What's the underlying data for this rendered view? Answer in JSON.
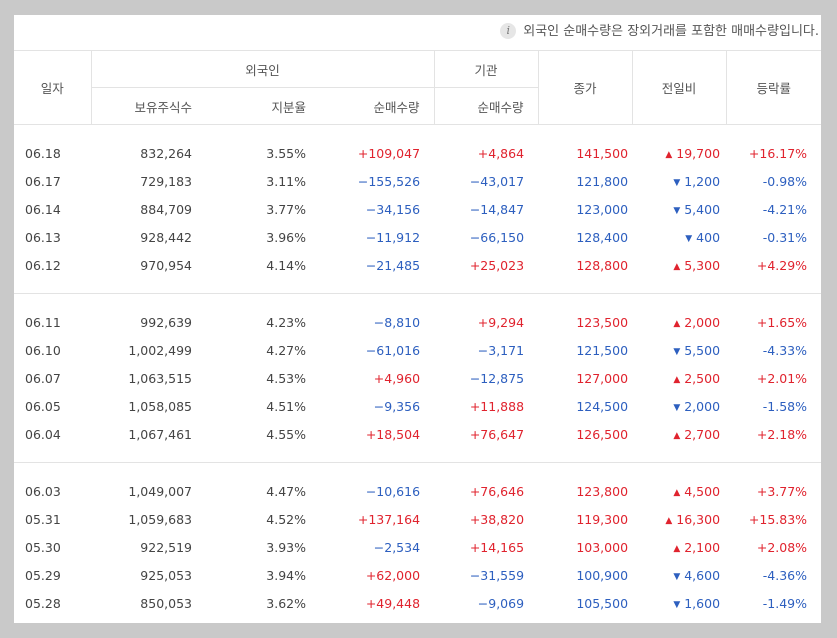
{
  "notice": "외국인 순매수량은 장외거래를 포함한 매매수량입니다.",
  "headers": {
    "date": "일자",
    "foreign": "외국인",
    "institution": "기관",
    "close": "종가",
    "change": "전일비",
    "rate": "등락률",
    "holdings": "보유주식수",
    "ratio": "지분율",
    "foreign_net": "순매수량",
    "inst_net": "순매수량"
  },
  "groups": [
    {
      "rows": [
        {
          "date": "06.18",
          "holdings": "832,264",
          "ratio": "3.55%",
          "foreign_net": "+109,047",
          "inst_net": "+4,864",
          "close": "141,500",
          "change": "19,700",
          "rate": "+16.17%",
          "dir": "up"
        },
        {
          "date": "06.17",
          "holdings": "729,183",
          "ratio": "3.11%",
          "foreign_net": "−155,526",
          "inst_net": "−43,017",
          "close": "121,800",
          "change": "1,200",
          "rate": "-0.98%",
          "dir": "down"
        },
        {
          "date": "06.14",
          "holdings": "884,709",
          "ratio": "3.77%",
          "foreign_net": "−34,156",
          "inst_net": "−14,847",
          "close": "123,000",
          "change": "5,400",
          "rate": "-4.21%",
          "dir": "down"
        },
        {
          "date": "06.13",
          "holdings": "928,442",
          "ratio": "3.96%",
          "foreign_net": "−11,912",
          "inst_net": "−66,150",
          "close": "128,400",
          "change": "400",
          "rate": "-0.31%",
          "dir": "down"
        },
        {
          "date": "06.12",
          "holdings": "970,954",
          "ratio": "4.14%",
          "foreign_net": "−21,485",
          "inst_net": "+25,023",
          "close": "128,800",
          "change": "5,300",
          "rate": "+4.29%",
          "dir": "up"
        }
      ]
    },
    {
      "rows": [
        {
          "date": "06.11",
          "holdings": "992,639",
          "ratio": "4.23%",
          "foreign_net": "−8,810",
          "inst_net": "+9,294",
          "close": "123,500",
          "change": "2,000",
          "rate": "+1.65%",
          "dir": "up"
        },
        {
          "date": "06.10",
          "holdings": "1,002,499",
          "ratio": "4.27%",
          "foreign_net": "−61,016",
          "inst_net": "−3,171",
          "close": "121,500",
          "change": "5,500",
          "rate": "-4.33%",
          "dir": "down"
        },
        {
          "date": "06.07",
          "holdings": "1,063,515",
          "ratio": "4.53%",
          "foreign_net": "+4,960",
          "inst_net": "−12,875",
          "close": "127,000",
          "change": "2,500",
          "rate": "+2.01%",
          "dir": "up"
        },
        {
          "date": "06.05",
          "holdings": "1,058,085",
          "ratio": "4.51%",
          "foreign_net": "−9,356",
          "inst_net": "+11,888",
          "close": "124,500",
          "change": "2,000",
          "rate": "-1.58%",
          "dir": "down"
        },
        {
          "date": "06.04",
          "holdings": "1,067,461",
          "ratio": "4.55%",
          "foreign_net": "+18,504",
          "inst_net": "+76,647",
          "close": "126,500",
          "change": "2,700",
          "rate": "+2.18%",
          "dir": "up"
        }
      ]
    },
    {
      "rows": [
        {
          "date": "06.03",
          "holdings": "1,049,007",
          "ratio": "4.47%",
          "foreign_net": "−10,616",
          "inst_net": "+76,646",
          "close": "123,800",
          "change": "4,500",
          "rate": "+3.77%",
          "dir": "up"
        },
        {
          "date": "05.31",
          "holdings": "1,059,683",
          "ratio": "4.52%",
          "foreign_net": "+137,164",
          "inst_net": "+38,820",
          "close": "119,300",
          "change": "16,300",
          "rate": "+15.83%",
          "dir": "up"
        },
        {
          "date": "05.30",
          "holdings": "922,519",
          "ratio": "3.93%",
          "foreign_net": "−2,534",
          "inst_net": "+14,165",
          "close": "103,000",
          "change": "2,100",
          "rate": "+2.08%",
          "dir": "up"
        },
        {
          "date": "05.29",
          "holdings": "925,053",
          "ratio": "3.94%",
          "foreign_net": "+62,000",
          "inst_net": "−31,559",
          "close": "100,900",
          "change": "4,600",
          "rate": "-4.36%",
          "dir": "down"
        },
        {
          "date": "05.28",
          "holdings": "850,053",
          "ratio": "3.62%",
          "foreign_net": "+49,448",
          "inst_net": "−9,069",
          "close": "105,500",
          "change": "1,600",
          "rate": "-1.49%",
          "dir": "down"
        }
      ]
    }
  ],
  "colors": {
    "up": "#e0232e",
    "down": "#2d5fbf"
  },
  "icons": {
    "info": "info-icon",
    "up": "triangle-up-icon",
    "down": "triangle-down-icon"
  }
}
